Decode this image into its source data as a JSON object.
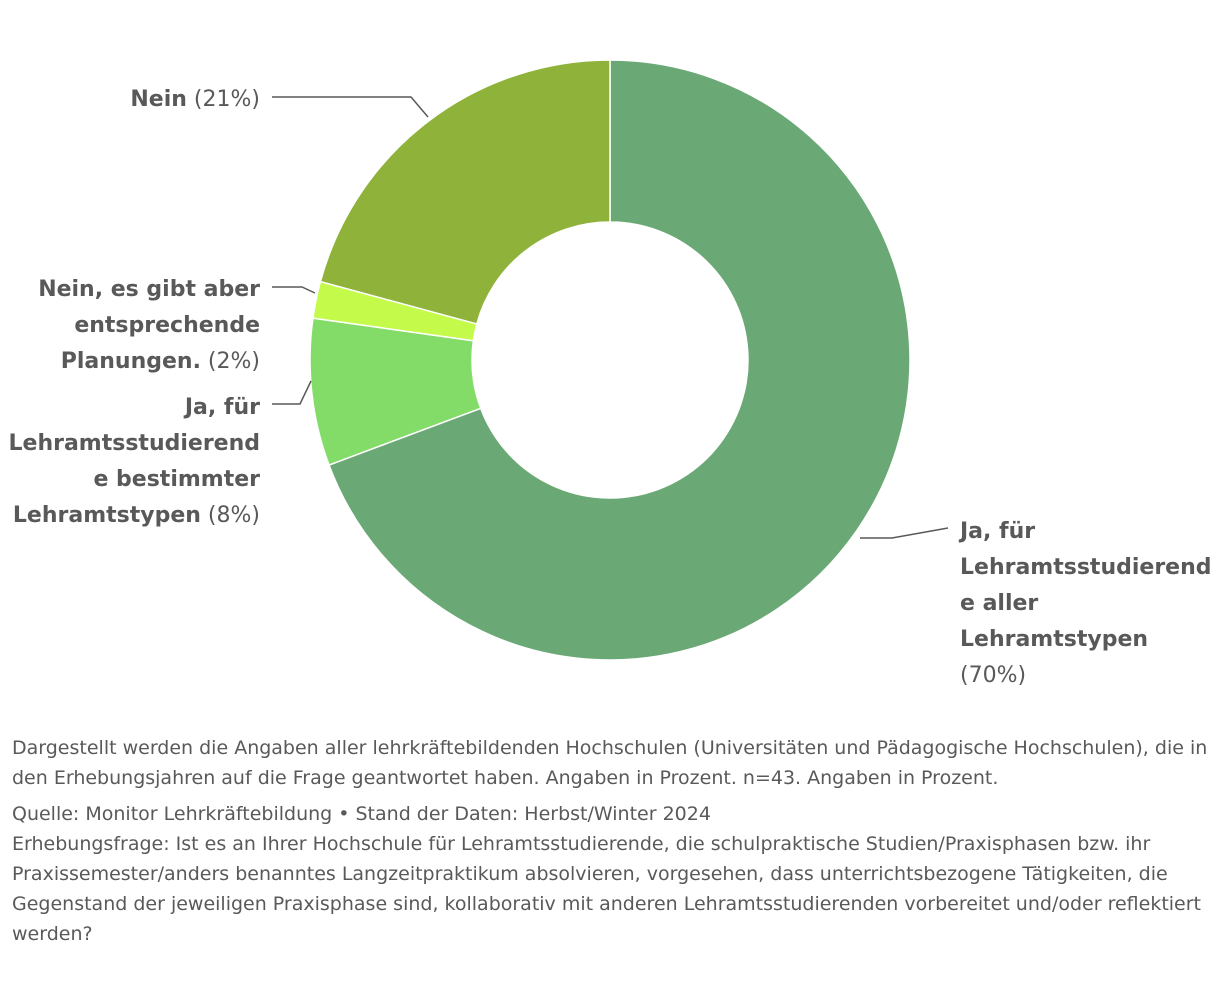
{
  "chart_data": {
    "type": "pie",
    "variant": "donut",
    "slices": [
      {
        "label": "Ja, für Lehramtsstudierende aller Lehramtstypen",
        "value": 70,
        "display": "(70%)",
        "color": "#6aa975"
      },
      {
        "label": "Ja, für Lehramtsstudierende bestimmter Lehramtstypen",
        "value": 8,
        "display": "(8%)",
        "color": "#84dc68"
      },
      {
        "label": "Nein, es gibt aber entsprechende Planungen.",
        "value": 2,
        "display": "(2%)",
        "color": "#c4fb4a"
      },
      {
        "label": "Nein",
        "value": 21,
        "display": "(21%)",
        "color": "#8fb33a"
      }
    ]
  },
  "notes": {
    "description": "Dargestellt werden die Angaben aller lehrkräftebildenden Hochschulen (Universitäten und Pädagogische Hochschulen), die in den Erhebungsjahren auf die Frage geantwortet haben. Angaben in Prozent. n=43. Angaben in Prozent.",
    "source": "Quelle: Monitor Lehrkräftebildung • Stand der Daten: Herbst/Winter 2024",
    "question": "Erhebungsfrage: Ist es an Ihrer Hochschule für Lehramtsstudierende, die schulpraktische Studien/Praxisphasen bzw. ihr Praxissemester/anders benanntes Langzeitpraktikum absolvieren, vorgesehen, dass unterrichtsbezogene Tätigkeiten, die Gegenstand der jeweiligen Praxisphase sind, kollaborativ mit anderen Lehramtsstudierenden vorbereitet und/oder reflektiert werden?"
  }
}
